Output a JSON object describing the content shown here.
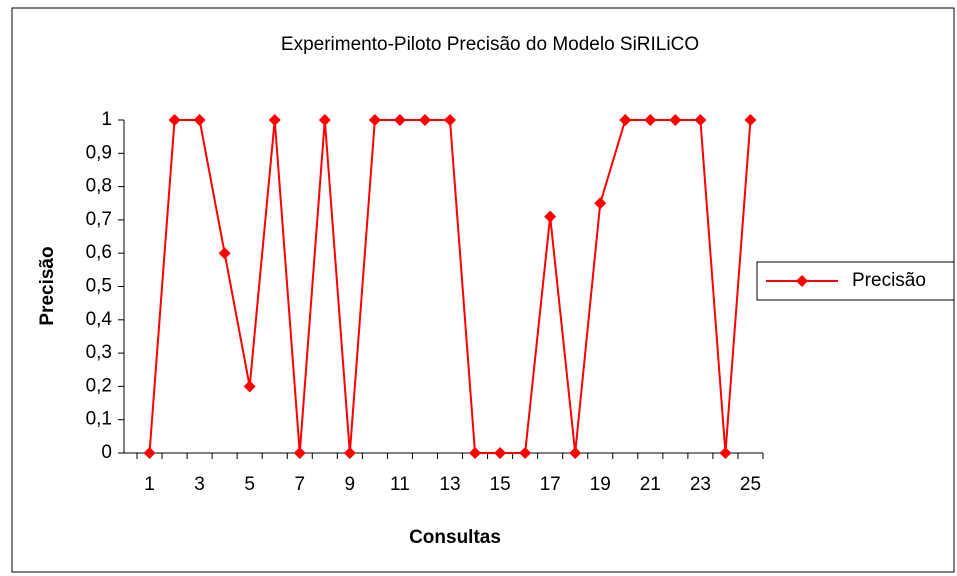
{
  "chart_data": {
    "type": "line",
    "title": "Experimento-Piloto Precisão do Modelo SiRILiCO",
    "xlabel": "Consultas",
    "ylabel": "Precisão",
    "categories": [
      "1",
      null,
      "3",
      null,
      "5",
      null,
      "7",
      null,
      "9",
      null,
      "11",
      null,
      "13",
      null,
      "15",
      null,
      "17",
      null,
      "19",
      null,
      "21",
      null,
      "23",
      null,
      "25"
    ],
    "series": [
      {
        "name": "Precisão",
        "color": "#ff0000",
        "values": [
          0,
          1,
          1,
          0.6,
          0.2,
          1,
          0,
          1,
          0,
          1,
          1,
          1,
          1,
          0,
          0,
          0,
          0.71,
          0,
          0.75,
          1,
          1,
          1,
          1,
          0,
          1
        ]
      }
    ],
    "ylim": [
      0,
      1
    ],
    "yticks": [
      0,
      {
        "value": 0.1,
        "label": "0,1"
      },
      {
        "value": 0.2,
        "label": "0,2"
      },
      {
        "value": 0.3,
        "label": "0,3"
      },
      {
        "value": 0.4,
        "label": "0,4"
      },
      {
        "value": 0.5,
        "label": "0,5"
      },
      {
        "value": 0.6,
        "label": "0,6"
      },
      {
        "value": 0.7,
        "label": "0,7"
      },
      {
        "value": 0.8,
        "label": "0,8"
      },
      {
        "value": 0.9,
        "label": "0,9"
      },
      1
    ],
    "grid": false,
    "legend": "right"
  }
}
